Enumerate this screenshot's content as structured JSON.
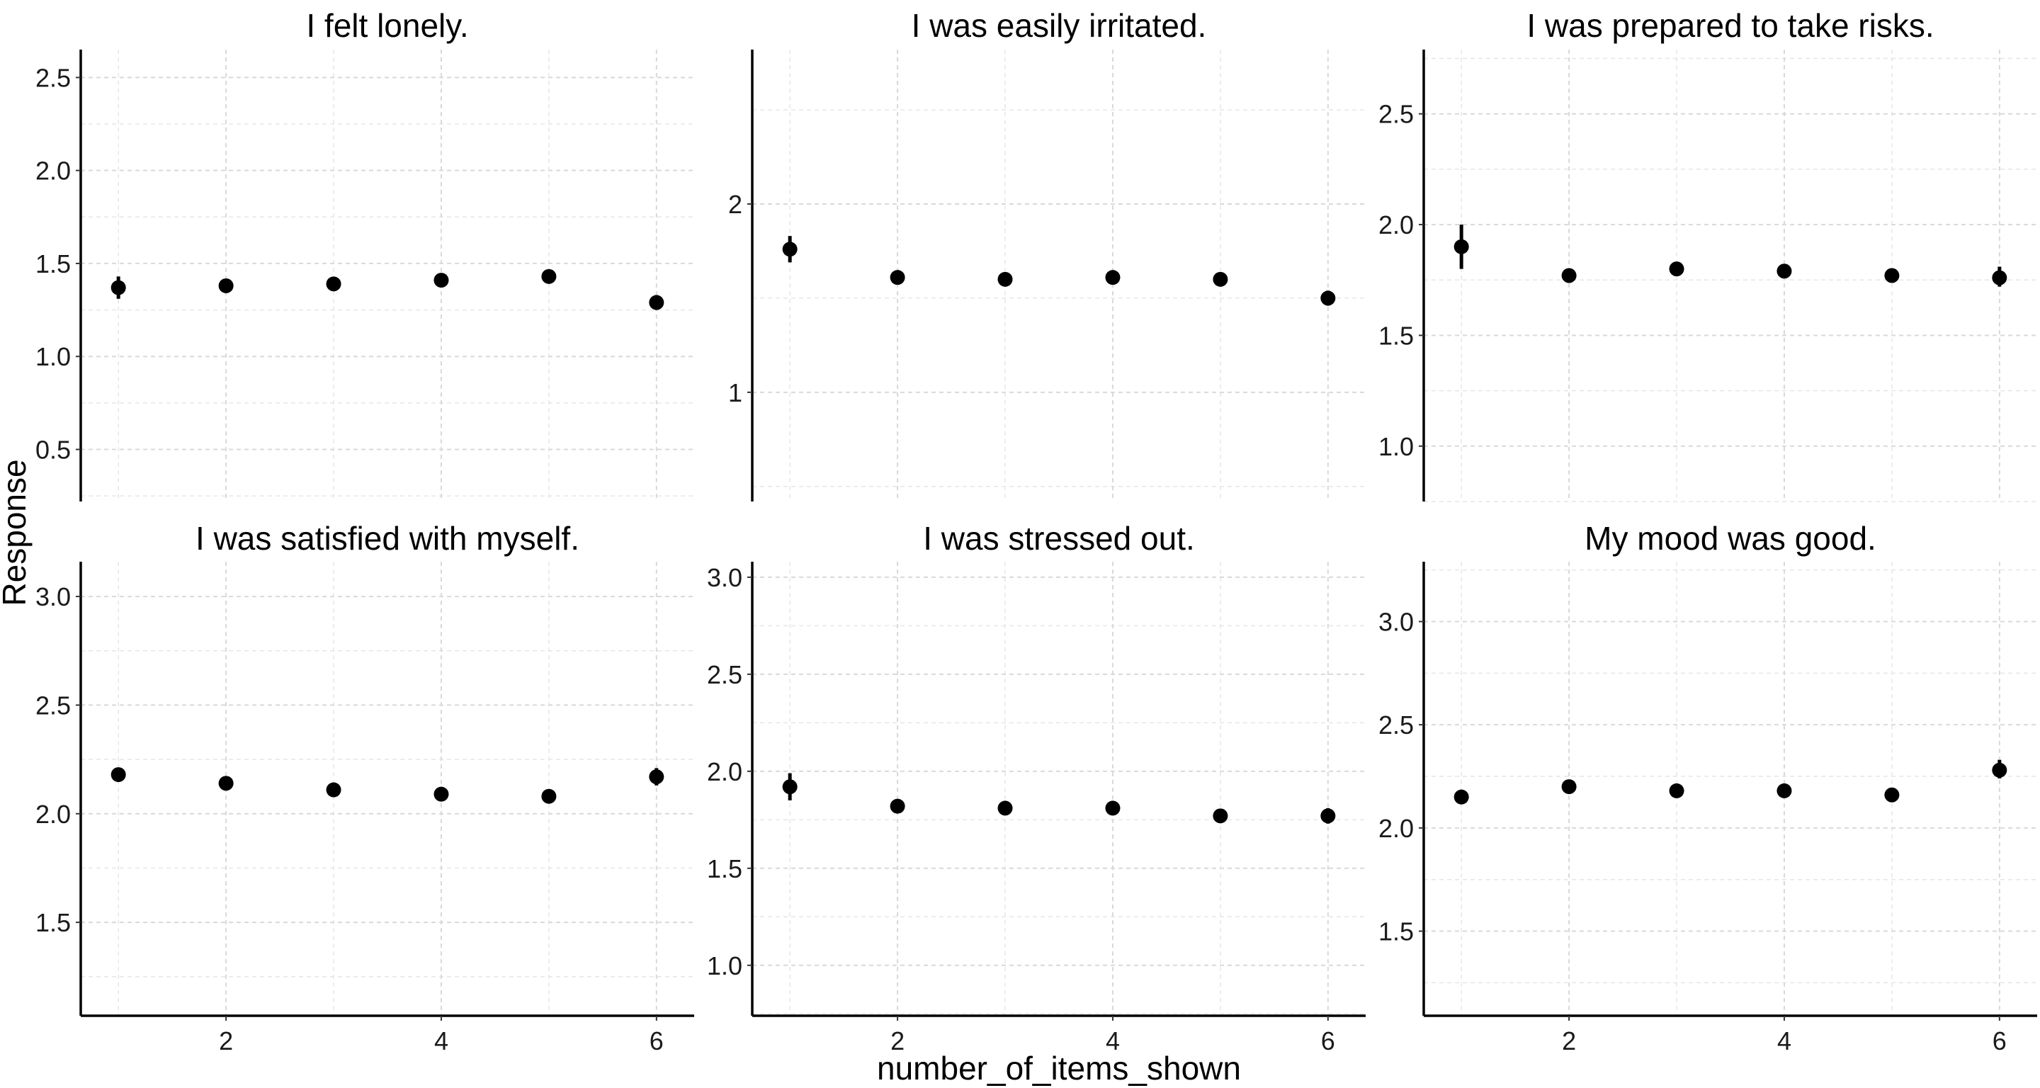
{
  "chart_data": {
    "type": "scatter",
    "layout": "facet-grid 2x3",
    "xlabel": "number_of_items_shown",
    "ylabel": "Response",
    "x_breaks": [
      2,
      4,
      6
    ],
    "xlim": [
      0.65,
      6.35
    ],
    "grid": true,
    "facets": [
      {
        "title": "I felt lonely.",
        "ylim": [
          0.22,
          2.65
        ],
        "y_breaks": [
          0.5,
          1.0,
          1.5,
          2.0,
          2.5
        ],
        "y_tick_labels": [
          "0.5",
          "1.0",
          "1.5",
          "2.0",
          "2.5"
        ],
        "points": [
          {
            "x": 1,
            "y": 1.37,
            "lo": 1.31,
            "hi": 1.43
          },
          {
            "x": 2,
            "y": 1.38,
            "lo": 1.36,
            "hi": 1.4
          },
          {
            "x": 3,
            "y": 1.39,
            "lo": 1.37,
            "hi": 1.41
          },
          {
            "x": 4,
            "y": 1.41,
            "lo": 1.39,
            "hi": 1.43
          },
          {
            "x": 5,
            "y": 1.43,
            "lo": 1.41,
            "hi": 1.45
          },
          {
            "x": 6,
            "y": 1.29,
            "lo": 1.25,
            "hi": 1.33
          }
        ]
      },
      {
        "title": "I was easily irritated.",
        "ylim": [
          0.42,
          2.82
        ],
        "y_breaks": [
          1,
          2
        ],
        "y_tick_labels": [
          "1",
          "2"
        ],
        "points": [
          {
            "x": 1,
            "y": 1.76,
            "lo": 1.69,
            "hi": 1.83
          },
          {
            "x": 2,
            "y": 1.61,
            "lo": 1.59,
            "hi": 1.63
          },
          {
            "x": 3,
            "y": 1.6,
            "lo": 1.58,
            "hi": 1.62
          },
          {
            "x": 4,
            "y": 1.61,
            "lo": 1.59,
            "hi": 1.63
          },
          {
            "x": 5,
            "y": 1.6,
            "lo": 1.58,
            "hi": 1.62
          },
          {
            "x": 6,
            "y": 1.5,
            "lo": 1.46,
            "hi": 1.54
          }
        ]
      },
      {
        "title": "I was prepared to take risks.",
        "ylim": [
          0.75,
          2.79
        ],
        "y_breaks": [
          1.0,
          1.5,
          2.0,
          2.5
        ],
        "y_tick_labels": [
          "1.0",
          "1.5",
          "2.0",
          "2.5"
        ],
        "points": [
          {
            "x": 1,
            "y": 1.9,
            "lo": 1.8,
            "hi": 2.0
          },
          {
            "x": 2,
            "y": 1.77,
            "lo": 1.75,
            "hi": 1.79
          },
          {
            "x": 3,
            "y": 1.8,
            "lo": 1.78,
            "hi": 1.82
          },
          {
            "x": 4,
            "y": 1.79,
            "lo": 1.77,
            "hi": 1.81
          },
          {
            "x": 5,
            "y": 1.77,
            "lo": 1.75,
            "hi": 1.79
          },
          {
            "x": 6,
            "y": 1.76,
            "lo": 1.72,
            "hi": 1.81
          }
        ]
      },
      {
        "title": "I was satisfied with myself.",
        "ylim": [
          1.07,
          3.16
        ],
        "y_breaks": [
          1.5,
          2.0,
          2.5,
          3.0
        ],
        "y_tick_labels": [
          "1.5",
          "2.0",
          "2.5",
          "3.0"
        ],
        "points": [
          {
            "x": 1,
            "y": 2.18,
            "lo": 2.16,
            "hi": 2.2
          },
          {
            "x": 2,
            "y": 2.14,
            "lo": 2.12,
            "hi": 2.16
          },
          {
            "x": 3,
            "y": 2.11,
            "lo": 2.09,
            "hi": 2.13
          },
          {
            "x": 4,
            "y": 2.09,
            "lo": 2.07,
            "hi": 2.11
          },
          {
            "x": 5,
            "y": 2.08,
            "lo": 2.06,
            "hi": 2.1
          },
          {
            "x": 6,
            "y": 2.17,
            "lo": 2.13,
            "hi": 2.21
          }
        ]
      },
      {
        "title": "I was stressed out.",
        "ylim": [
          0.74,
          3.08
        ],
        "y_breaks": [
          1.0,
          1.5,
          2.0,
          2.5,
          3.0
        ],
        "y_tick_labels": [
          "1.0",
          "1.5",
          "2.0",
          "2.5",
          "3.0"
        ],
        "points": [
          {
            "x": 1,
            "y": 1.92,
            "lo": 1.85,
            "hi": 1.99
          },
          {
            "x": 2,
            "y": 1.82,
            "lo": 1.8,
            "hi": 1.84
          },
          {
            "x": 3,
            "y": 1.81,
            "lo": 1.79,
            "hi": 1.83
          },
          {
            "x": 4,
            "y": 1.81,
            "lo": 1.79,
            "hi": 1.83
          },
          {
            "x": 5,
            "y": 1.77,
            "lo": 1.75,
            "hi": 1.79
          },
          {
            "x": 6,
            "y": 1.77,
            "lo": 1.73,
            "hi": 1.81
          }
        ]
      },
      {
        "title": "My mood was good.",
        "ylim": [
          1.09,
          3.29
        ],
        "y_breaks": [
          1.5,
          2.0,
          2.5,
          3.0
        ],
        "y_tick_labels": [
          "1.5",
          "2.0",
          "2.5",
          "3.0"
        ],
        "points": [
          {
            "x": 1,
            "y": 2.15,
            "lo": 2.13,
            "hi": 2.17
          },
          {
            "x": 2,
            "y": 2.2,
            "lo": 2.18,
            "hi": 2.22
          },
          {
            "x": 3,
            "y": 2.18,
            "lo": 2.16,
            "hi": 2.2
          },
          {
            "x": 4,
            "y": 2.18,
            "lo": 2.16,
            "hi": 2.2
          },
          {
            "x": 5,
            "y": 2.16,
            "lo": 2.14,
            "hi": 2.18
          },
          {
            "x": 6,
            "y": 2.28,
            "lo": 2.24,
            "hi": 2.33
          }
        ]
      }
    ]
  }
}
